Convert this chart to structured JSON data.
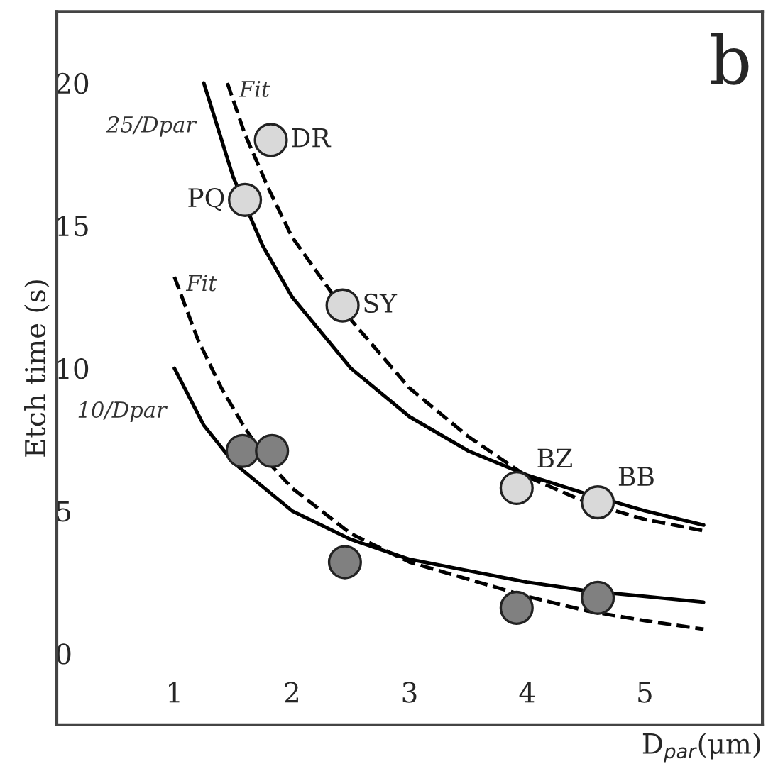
{
  "chart_data": {
    "type": "scatter",
    "xlabel": "D$_{par}$(μm)",
    "ylabel": "Etch time (s)",
    "xlim": [
      0,
      6
    ],
    "ylim": [
      -2.5,
      22.5
    ],
    "xticks": [
      1,
      2,
      3,
      4,
      5
    ],
    "yticks": [
      0,
      5,
      10,
      15,
      20
    ],
    "grid": false,
    "marker": "circle",
    "series": [
      {
        "type": "line",
        "name": "25/Dpar",
        "marker": "none",
        "color": "#000000",
        "line_style": "solid",
        "x": [
          1.25,
          1.5,
          1.75,
          2,
          2.5,
          3,
          3.5,
          4,
          4.5,
          5,
          5.5
        ],
        "values": [
          20,
          16.7,
          14.3,
          12.5,
          10,
          8.3,
          7.1,
          6.25,
          5.6,
          5,
          4.5
        ]
      },
      {
        "type": "line",
        "name": "Fit",
        "marker": "none",
        "color": "#000000",
        "line_style": "dashed",
        "x": [
          1.45,
          1.6,
          1.8,
          2,
          2.5,
          3,
          3.5,
          4,
          4.5,
          5,
          5.5
        ],
        "values": [
          20,
          18.2,
          16.3,
          14.6,
          11.7,
          9.3,
          7.6,
          6.2,
          5.3,
          4.7,
          4.3
        ]
      },
      {
        "type": "line",
        "name": "10/Dpar",
        "marker": "none",
        "color": "#000000",
        "line_style": "solid",
        "x": [
          1,
          1.25,
          1.5,
          2,
          2.5,
          3,
          3.5,
          4,
          4.5,
          5,
          5.5
        ],
        "values": [
          10,
          8,
          6.7,
          5,
          4,
          3.3,
          2.9,
          2.5,
          2.2,
          2,
          1.8
        ]
      },
      {
        "type": "line",
        "name": "Fit",
        "marker": "none",
        "color": "#000000",
        "line_style": "dashed",
        "x": [
          1,
          1.2,
          1.4,
          1.6,
          1.8,
          2,
          2.5,
          3,
          3.5,
          4,
          4.5,
          5,
          5.5
        ],
        "values": [
          13.2,
          11,
          9.3,
          7.9,
          6.7,
          5.8,
          4.2,
          3.2,
          2.6,
          2,
          1.5,
          1.15,
          0.85
        ]
      },
      {
        "color": "#d9d9d9",
        "x": [
          1.82,
          1.6,
          2.43,
          3.91,
          4.6
        ],
        "values": [
          18,
          15.9,
          12.2,
          5.8,
          5.3
        ],
        "value_labels": [
          "DR",
          "PQ",
          "SY",
          "BZ",
          "BB"
        ]
      },
      {
        "color": "#808080",
        "x": [
          1.58,
          1.83,
          2.45,
          3.91,
          4.6
        ],
        "values": [
          7.1,
          7.1,
          3.2,
          1.6,
          1.95
        ]
      }
    ],
    "annotations": [
      "b"
    ]
  }
}
